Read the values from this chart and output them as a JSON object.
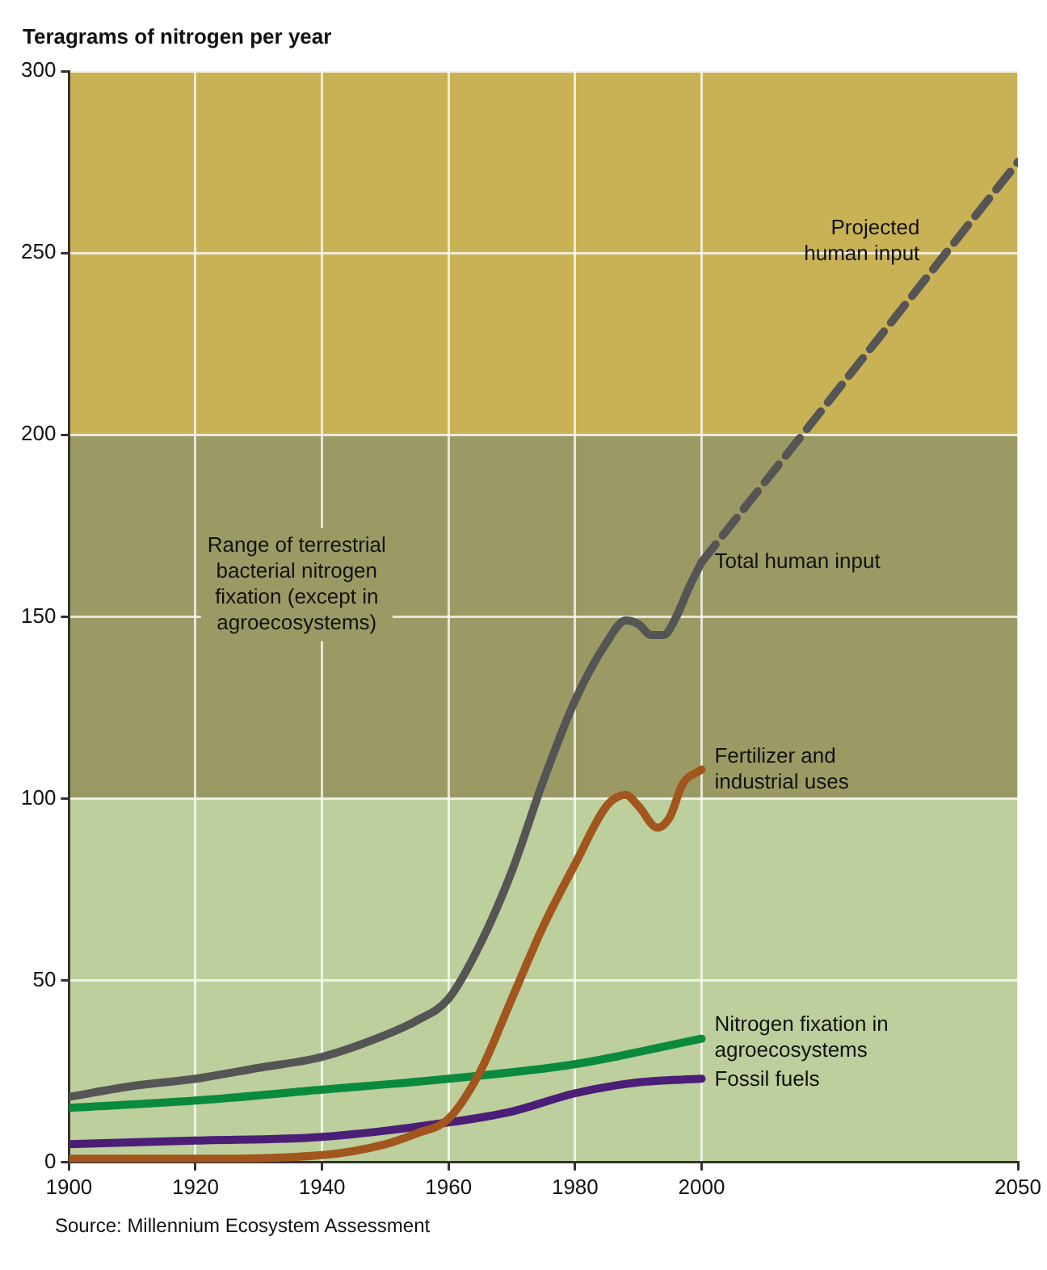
{
  "chart_data": {
    "type": "line",
    "ylabel": "Teragrams of nitrogen per year",
    "xlim": [
      1900,
      2050
    ],
    "xticks": [
      1900,
      1920,
      1940,
      1960,
      1980,
      2000,
      2050
    ],
    "ylim": [
      0,
      300
    ],
    "yticks": [
      0,
      50,
      100,
      150,
      200,
      250,
      300
    ],
    "grid": true,
    "legend": false,
    "marker": "none",
    "bands": [
      {
        "axis": "y",
        "from": 0,
        "to": 100,
        "color": "#bccf9c"
      },
      {
        "axis": "y",
        "from": 100,
        "to": 200,
        "color": "#9c9a64",
        "label": "Range of terrestrial bacterial nitrogen fixation (except in agroecosystems)"
      },
      {
        "axis": "y",
        "from": 200,
        "to": 300,
        "color": "#c9b255"
      }
    ],
    "series": [
      {
        "name": "Total human input",
        "color": "#555555",
        "line_style": "solid",
        "x": [
          1900,
          1910,
          1920,
          1930,
          1940,
          1950,
          1955,
          1960,
          1965,
          1970,
          1975,
          1980,
          1985,
          1988,
          1990,
          1992,
          1994,
          1996,
          1998,
          2000
        ],
        "values": [
          18,
          21,
          23,
          26,
          29,
          35,
          39,
          45,
          60,
          80,
          105,
          127,
          143,
          149,
          148,
          145,
          145,
          150,
          158,
          165
        ]
      },
      {
        "name": "Projected human input",
        "color": "#555555",
        "line_style": "dashed",
        "x": [
          2000,
          2050
        ],
        "values": [
          165,
          275
        ]
      },
      {
        "name": "Fertilizer and industrial uses",
        "color": "#a2561e",
        "line_style": "solid",
        "x": [
          1900,
          1920,
          1940,
          1950,
          1955,
          1960,
          1965,
          1970,
          1975,
          1980,
          1985,
          1988,
          1990,
          1993,
          1995,
          1997,
          2000
        ],
        "values": [
          1,
          1,
          2,
          5,
          8,
          12,
          25,
          45,
          65,
          82,
          98,
          101,
          98,
          92,
          95,
          104,
          108
        ]
      },
      {
        "name": "Nitrogen fixation in agroecosystems",
        "color": "#0a8a3c",
        "line_style": "solid",
        "x": [
          1900,
          1920,
          1940,
          1960,
          1980,
          2000
        ],
        "values": [
          15,
          17,
          20,
          23,
          27,
          34
        ]
      },
      {
        "name": "Fossil fuels",
        "color": "#4b1e78",
        "line_style": "solid",
        "x": [
          1900,
          1920,
          1940,
          1960,
          1970,
          1980,
          1990,
          2000
        ],
        "values": [
          5,
          6,
          7,
          11,
          14,
          19,
          22,
          23
        ]
      }
    ],
    "annotations": [
      "Source: Millennium Ecosystem Assessment"
    ]
  }
}
